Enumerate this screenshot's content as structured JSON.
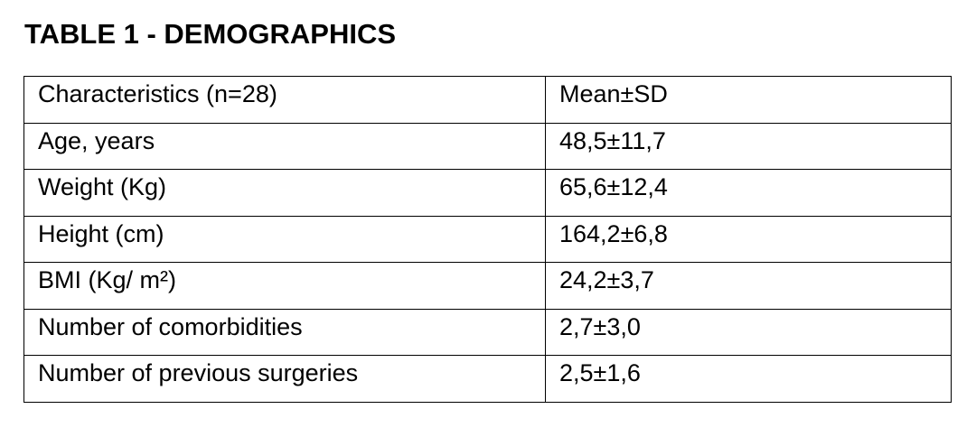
{
  "header": {
    "title": "TABLE 1 - DEMOGRAPHICS"
  },
  "table": {
    "columns": [
      "Characteristics (n=28)",
      "Mean±SD"
    ],
    "rows": [
      [
        "Age, years",
        "48,5±11,7"
      ],
      [
        "Weight (Kg)",
        "65,6±12,4"
      ],
      [
        "Height (cm)",
        "164,2±6,8"
      ],
      [
        "BMI (Kg/ m²)",
        "24,2±3,7"
      ],
      [
        "Number of comorbidities",
        "2,7±3,0"
      ],
      [
        "Number of previous surgeries",
        "2,5±1,6"
      ]
    ]
  }
}
